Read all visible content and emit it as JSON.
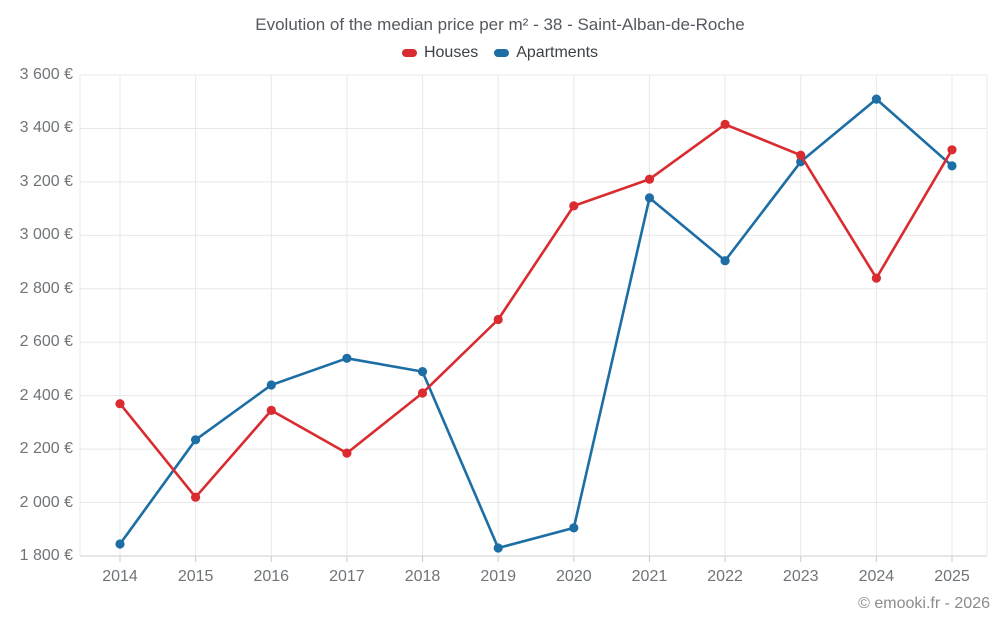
{
  "title": "Evolution of the median price per m² - 38 - Saint-Alban-de-Roche",
  "footer": "© emooki.fr - 2026",
  "colors": {
    "houses": "#d92b30",
    "apartments": "#1c6ea4",
    "gridline": "#e8e8e8",
    "axis_line": "#cfcfcf",
    "tick": "#c9c9c9",
    "axis_label_text": "#6f7478",
    "title_text": "#54595f",
    "legend_text": "#3d4145",
    "footer_text": "#8b8b8b"
  },
  "chart_data": {
    "type": "line",
    "title": "Evolution of the median price per m² - 38 - Saint-Alban-de-Roche",
    "categories": [
      "2014",
      "2015",
      "2016",
      "2017",
      "2018",
      "2019",
      "2020",
      "2021",
      "2022",
      "2023",
      "2024",
      "2025"
    ],
    "series": [
      {
        "name": "Houses",
        "color": "#d92b30",
        "values": [
          2370,
          2020,
          2345,
          2185,
          2410,
          2685,
          3110,
          3210,
          3415,
          3300,
          2840,
          3320
        ]
      },
      {
        "name": "Apartments",
        "color": "#1c6ea4",
        "values": [
          1845,
          2235,
          2440,
          2540,
          2490,
          1830,
          1905,
          3140,
          2905,
          3275,
          3510,
          3260
        ]
      }
    ],
    "ylim": [
      1800,
      3600
    ],
    "ytick_step": 200,
    "ytick_labels": [
      "1 800 €",
      "2 000 €",
      "2 200 €",
      "2 400 €",
      "2 600 €",
      "2 800 €",
      "3 000 €",
      "3 200 €",
      "3 400 €",
      "3 600 €"
    ],
    "grid": true,
    "legend_position": "top",
    "draw_order": [
      "Apartments",
      "Houses"
    ]
  }
}
